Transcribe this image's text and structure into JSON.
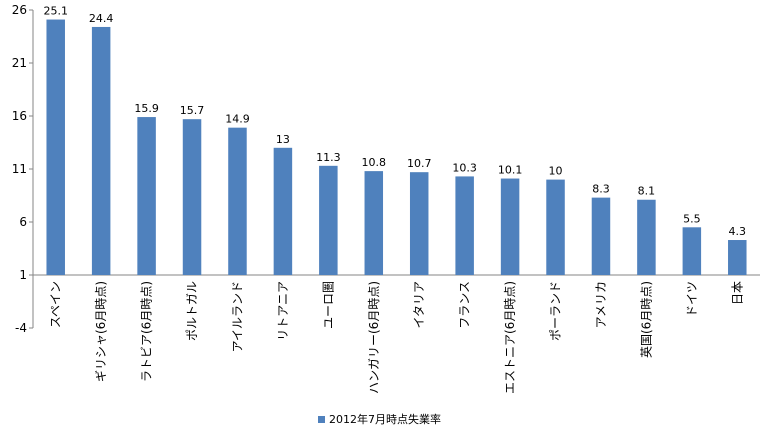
{
  "chart_data": {
    "type": "bar",
    "categories": [
      "スペイン",
      "ギリシャ(6月時点)",
      "ラトビア(6月時点)",
      "ポルトガル",
      "アイルランド",
      "リトアニア",
      "ユーロ圏",
      "ハンガリー(6月時点)",
      "イタリア",
      "フランス",
      "エストニア(6月時点)",
      "ポーランド",
      "アメリカ",
      "英国(6月時点)",
      "ドイツ",
      "日本"
    ],
    "series": [
      {
        "name": "2012年7月時点失業率",
        "values": [
          25.1,
          24.4,
          15.9,
          15.7,
          14.9,
          13,
          11.3,
          10.8,
          10.7,
          10.3,
          10.1,
          10,
          8.3,
          8.1,
          5.5,
          4.3
        ],
        "color": "#4f81bd"
      }
    ],
    "y_ticks": [
      "26",
      "21",
      "16",
      "11",
      "6",
      "1",
      "-4"
    ],
    "ylim": [
      -4,
      26
    ],
    "baseline": 1,
    "legend_position": "bottom",
    "grid": false
  }
}
